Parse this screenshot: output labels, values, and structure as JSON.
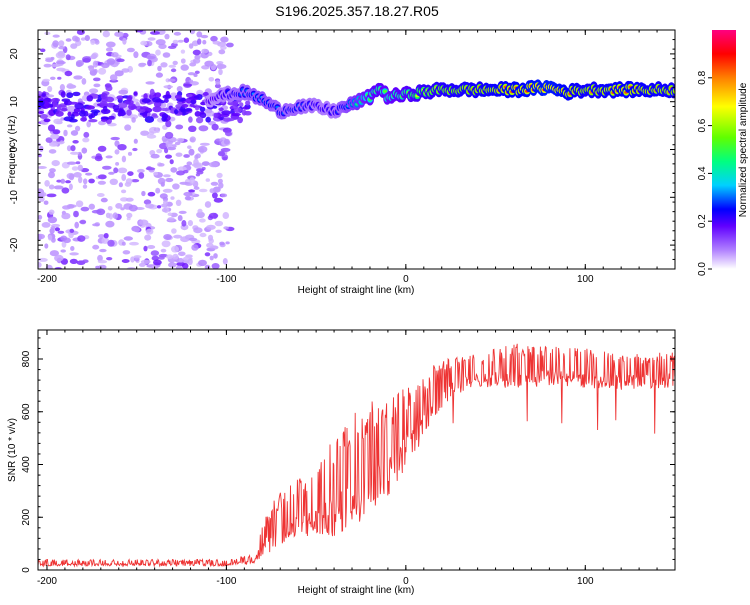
{
  "title": "S196.2025.357.18.27.R05",
  "chart_data": [
    {
      "id": "spectrogram",
      "type": "heatmap",
      "xlabel": "Height of straight line (km)",
      "ylabel": "Frequency (Hz)",
      "xlim": [
        -205,
        150
      ],
      "ylim": [
        -25,
        25
      ],
      "xticks": [
        -200,
        -100,
        0,
        100
      ],
      "yticks": [
        -20,
        -10,
        0,
        10,
        20
      ],
      "colorbar": {
        "label": "Normalized spectral amplitude",
        "range": [
          0.0,
          1.0
        ],
        "ticks": [
          "0.0",
          "0.2",
          "0.4",
          "0.6",
          "0.8"
        ],
        "tick_values": [
          0.0,
          0.2,
          0.4,
          0.6,
          0.8
        ],
        "colors": [
          "#ffffff",
          "#b080ff",
          "#6000ff",
          "#0000ff",
          "#00d0ff",
          "#00ff60",
          "#80ff00",
          "#ffff00",
          "#ff8000",
          "#ff0000",
          "#ff0080"
        ]
      },
      "ridge": {
        "description_points_x": [
          -110,
          -100,
          -90,
          -80,
          -70,
          -60,
          -50,
          -40,
          -30,
          -20,
          -15,
          -10,
          0,
          10,
          20,
          40,
          60,
          80,
          90,
          100,
          120,
          150
        ],
        "frequency_hz": [
          10.5,
          11.5,
          12,
          10.5,
          8,
          9,
          9,
          8,
          9.5,
          11,
          13,
          11,
          11.5,
          12,
          12.5,
          12.5,
          12.5,
          13,
          12,
          12.5,
          12.5,
          12.5
        ],
        "amplitude": [
          0.25,
          0.3,
          0.35,
          0.4,
          0.35,
          0.35,
          0.3,
          0.3,
          0.45,
          0.55,
          0.6,
          0.55,
          0.6,
          0.7,
          0.75,
          0.8,
          0.85,
          0.9,
          0.85,
          0.8,
          0.85,
          0.8
        ]
      },
      "noise_region_x": [
        -205,
        -98
      ]
    },
    {
      "id": "snr",
      "type": "line",
      "xlabel": "Height of straight line (km)",
      "ylabel": "SNR (10 * v/v)",
      "xlim": [
        -205,
        150
      ],
      "ylim": [
        0,
        910
      ],
      "xticks": [
        -200,
        -100,
        0,
        100
      ],
      "yticks": [
        0,
        200,
        400,
        600,
        800
      ],
      "series_color": "#ee3333",
      "envelope": {
        "x": [
          -205,
          -100,
          -85,
          -80,
          -70,
          -60,
          -50,
          -40,
          -30,
          -20,
          -10,
          0,
          10,
          20,
          30,
          40,
          60,
          80,
          100,
          120,
          150
        ],
        "base": [
          20,
          20,
          30,
          80,
          120,
          160,
          180,
          200,
          250,
          300,
          350,
          450,
          550,
          650,
          700,
          720,
          720,
          730,
          720,
          710,
          720
        ],
        "peak": [
          40,
          40,
          60,
          200,
          300,
          350,
          400,
          500,
          600,
          650,
          650,
          700,
          750,
          800,
          820,
          820,
          860,
          850,
          840,
          820,
          830
        ]
      }
    }
  ]
}
